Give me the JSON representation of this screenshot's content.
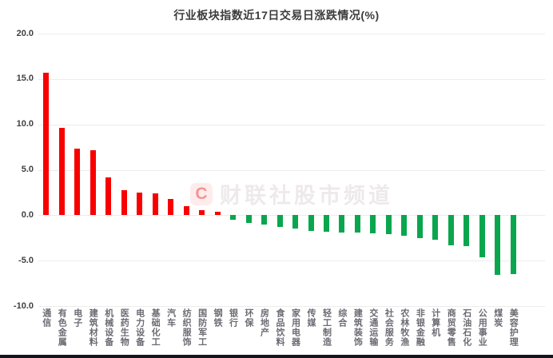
{
  "title": "行业板块指数近17日交易日涨跌情况(%)",
  "watermark": {
    "badge": "C",
    "text": "财联社股市频道"
  },
  "colors": {
    "positive_bar": "#f80000",
    "negative_bar": "#0aa64e",
    "grid": "#ececec",
    "tick_text": "#404040",
    "title_text": "#3c3c3c",
    "category_text": "#6b6b73",
    "bottom_edge": "#14141c"
  },
  "chart_data": {
    "type": "bar",
    "title": "行业板块指数近17日交易日涨跌情况(%)",
    "categories": [
      "通信",
      "有色金属",
      "电子",
      "建筑材料",
      "机械设备",
      "医药生物",
      "电力设备",
      "基础化工",
      "汽车",
      "纺织服饰",
      "国防军工",
      "钢铁",
      "银行",
      "环保",
      "房地产",
      "食品饮料",
      "家用电器",
      "传媒",
      "轻工制造",
      "综合",
      "建筑装饰",
      "交通运输",
      "社会服务",
      "农林牧渔",
      "非银金融",
      "计算机",
      "商贸零售",
      "石油石化",
      "公用事业",
      "煤炭",
      "美容护理"
    ],
    "values": [
      15.7,
      9.6,
      7.3,
      7.2,
      4.2,
      2.8,
      2.5,
      2.4,
      1.8,
      1.0,
      0.6,
      0.4,
      -0.5,
      -0.9,
      -1.0,
      -1.3,
      -1.5,
      -1.7,
      -1.8,
      -1.9,
      -1.9,
      -2.0,
      -2.1,
      -2.3,
      -2.5,
      -2.7,
      -3.3,
      -3.4,
      -4.6,
      -6.6,
      -6.5
    ],
    "xlabel": "",
    "ylabel": "",
    "ylim": [
      -10,
      20
    ],
    "yticks": [
      20,
      15,
      10,
      5,
      0,
      -5,
      -10
    ],
    "ytick_labels": [
      "20.0",
      "15.0",
      "10.0",
      "5.0",
      "0.0",
      "-5.0",
      "-10.0"
    ],
    "grid": true,
    "legend": false,
    "bar_color_positive": "#f80000",
    "bar_color_negative": "#0aa64e"
  }
}
